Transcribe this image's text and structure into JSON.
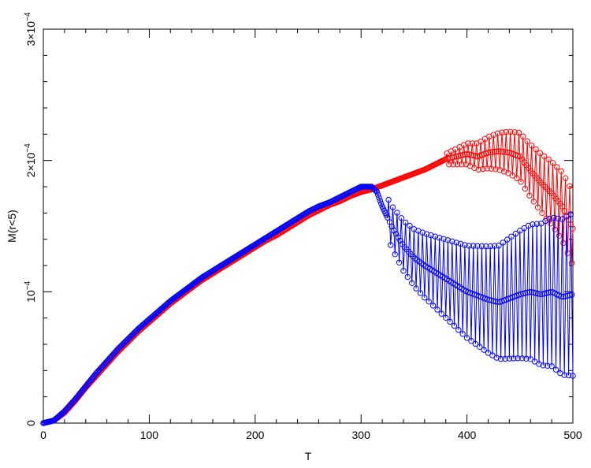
{
  "chart_data": {
    "type": "line",
    "title": "",
    "xlabel": "T",
    "ylabel": "M(r<5)",
    "xlim": [
      0,
      500
    ],
    "ylim": [
      0,
      0.0003
    ],
    "grid": false,
    "legend": "none",
    "x_ticks": [
      {
        "value": 0,
        "label": "0"
      },
      {
        "value": 100,
        "label": "100"
      },
      {
        "value": 200,
        "label": "200"
      },
      {
        "value": 300,
        "label": "300"
      },
      {
        "value": 400,
        "label": "400"
      },
      {
        "value": 500,
        "label": "500"
      }
    ],
    "y_ticks": [
      {
        "value": 0,
        "label": "0",
        "exp": ""
      },
      {
        "value": 0.0001,
        "label": "10",
        "exp": "−4"
      },
      {
        "value": 0.0002,
        "label": "2×10",
        "exp": "−4"
      },
      {
        "value": 0.0003,
        "label": "3×10",
        "exp": "−4"
      }
    ],
    "marker": "open-circle",
    "series": [
      {
        "color": "#ff0000",
        "x": [
          0,
          10,
          20,
          30,
          40,
          50,
          60,
          70,
          80,
          90,
          100,
          110,
          120,
          130,
          140,
          150,
          160,
          170,
          180,
          190,
          200,
          210,
          220,
          230,
          240,
          250,
          260,
          270,
          280,
          290,
          300,
          310,
          320,
          330,
          340,
          350,
          360,
          370,
          380,
          390,
          400,
          410,
          420,
          430,
          440,
          450,
          460,
          470,
          480,
          490,
          500
        ],
        "y": [
          0.0,
          2e-06,
          8e-06,
          1.7e-05,
          2.7e-05,
          3.6e-05,
          4.5e-05,
          5.4e-05,
          6.2e-05,
          7e-05,
          7.7e-05,
          8.4e-05,
          9.1e-05,
          9.7e-05,
          0.000103,
          0.000109,
          0.000114,
          0.000119,
          0.000124,
          0.000129,
          0.000134,
          0.000139,
          0.000143,
          0.000148,
          0.000153,
          0.000158,
          0.000162,
          0.000166,
          0.000169,
          0.000173,
          0.000176,
          0.000178,
          0.000181,
          0.000184,
          0.000187,
          0.00019,
          0.000193,
          0.000197,
          0.000201,
          0.000203,
          0.000205,
          0.000203,
          0.000206,
          0.000207,
          0.000206,
          0.000203,
          0.000192,
          0.000183,
          0.000175,
          0.000165,
          0.000148
        ],
        "oscillation": {
          "start": 380,
          "amplitude_start": 4e-06,
          "amplitude_end": 2.8e-05,
          "period": 4
        }
      },
      {
        "color": "#0000ff",
        "x": [
          0,
          10,
          20,
          30,
          40,
          50,
          60,
          70,
          80,
          90,
          100,
          110,
          120,
          130,
          140,
          150,
          160,
          170,
          180,
          190,
          200,
          210,
          220,
          230,
          240,
          250,
          260,
          270,
          280,
          290,
          300,
          310,
          315,
          320,
          330,
          340,
          350,
          360,
          370,
          380,
          390,
          400,
          410,
          420,
          430,
          440,
          450,
          460,
          470,
          480,
          490,
          500
        ],
        "y": [
          0.0,
          2e-06,
          9e-06,
          1.8e-05,
          2.8e-05,
          3.8e-05,
          4.7e-05,
          5.6e-05,
          6.4e-05,
          7.2e-05,
          7.9e-05,
          8.6e-05,
          9.3e-05,
          9.9e-05,
          0.000105,
          0.000111,
          0.000116,
          0.000121,
          0.000126,
          0.000131,
          0.000136,
          0.000141,
          0.000146,
          0.000151,
          0.000156,
          0.000161,
          0.000165,
          0.000168,
          0.000172,
          0.000176,
          0.00018,
          0.00018,
          0.000176,
          0.000165,
          0.000148,
          0.000135,
          0.000126,
          0.00012,
          0.000115,
          0.00011,
          0.000105,
          0.0001,
          9.7e-05,
          9.4e-05,
          9.2e-05,
          9.5e-05,
          9.8e-05,
          0.0001,
          9.8e-05,
          0.0001,
          9.6e-05,
          9.8e-05
        ],
        "oscillation": {
          "start": 325,
          "amplitude_start": 1.5e-05,
          "amplitude_end": 6.2e-05,
          "period": 4
        }
      }
    ]
  }
}
